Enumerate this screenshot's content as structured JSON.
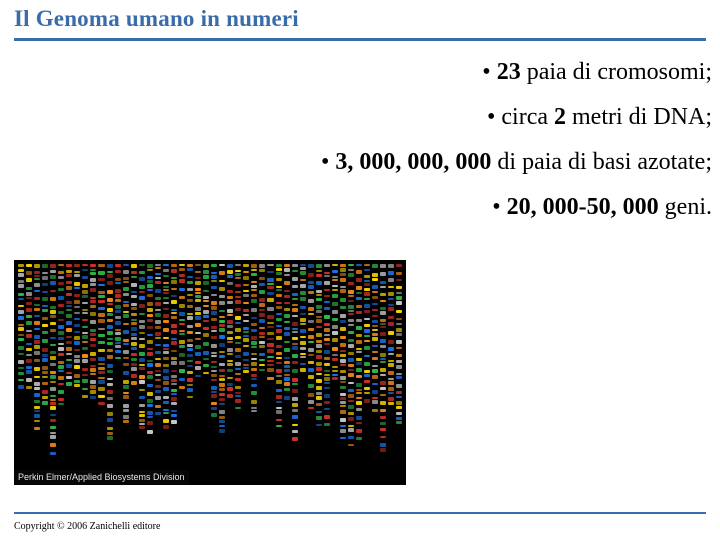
{
  "title": "Il Genoma umano in numeri",
  "bullets": {
    "b1": {
      "pre": "• ",
      "bold": "23",
      "post": " paia di cromosomi;"
    },
    "b2": {
      "pre": "• circa ",
      "bold": "2",
      "post": " metri di DNA;"
    },
    "b3": {
      "pre": "• ",
      "bold": "3, 000, 000, 000",
      "post": " di paia di basi azotate;"
    },
    "b4": {
      "pre": "• ",
      "bold": "20, 000-50, 000",
      "post": " geni."
    }
  },
  "gel": {
    "caption": "Perkin Elmer/Applied Biosystems Division",
    "colors": [
      "#f5d400",
      "#2fb84a",
      "#f08a1a",
      "#d03028",
      "#1a6fe0",
      "#c7c7c7"
    ],
    "background": "#000000",
    "lane_count": 48,
    "bands_per_lane_min": 18,
    "bands_per_lane_max": 32
  },
  "colors": {
    "accent": "#3b6caa",
    "text": "#000000",
    "bg": "#ffffff"
  },
  "copyright": "Copyright © 2006 Zanichelli editore"
}
